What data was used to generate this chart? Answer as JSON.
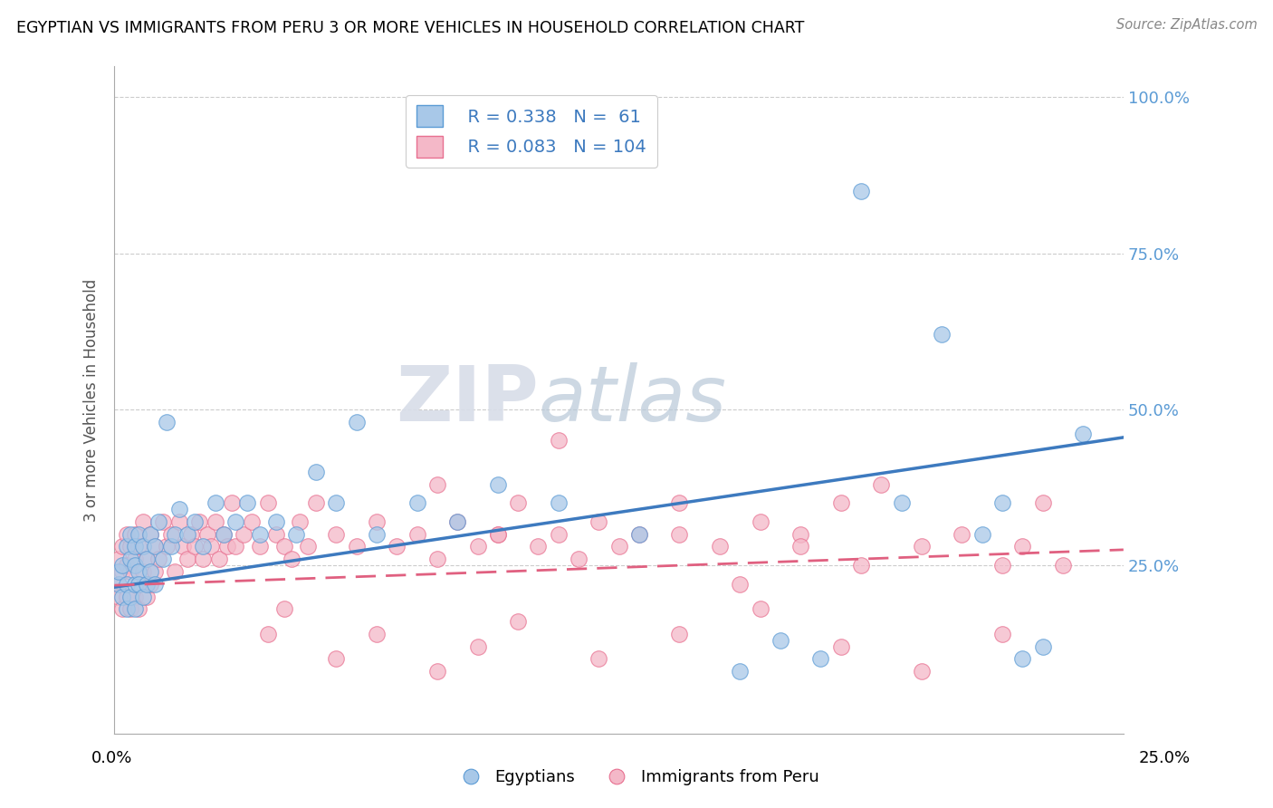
{
  "title": "EGYPTIAN VS IMMIGRANTS FROM PERU 3 OR MORE VEHICLES IN HOUSEHOLD CORRELATION CHART",
  "source": "Source: ZipAtlas.com",
  "ylabel": "3 or more Vehicles in Household",
  "xlim": [
    0.0,
    0.25
  ],
  "ylim": [
    -0.02,
    1.05
  ],
  "legend_r1": "R = 0.338",
  "legend_n1": "N =  61",
  "legend_r2": "R = 0.083",
  "legend_n2": "N = 104",
  "color_blue_fill": "#a8c8e8",
  "color_blue_edge": "#5b9bd5",
  "color_blue_line": "#3d7abf",
  "color_pink_fill": "#f4b8c8",
  "color_pink_edge": "#e87090",
  "color_pink_line": "#e06080",
  "ytick_vals": [
    0.0,
    0.25,
    0.5,
    0.75,
    1.0
  ],
  "ytick_labels_right": [
    "",
    "25.0%",
    "50.0%",
    "75.0%",
    "100.0%"
  ],
  "egyptians_x": [
    0.001,
    0.001,
    0.002,
    0.002,
    0.003,
    0.003,
    0.003,
    0.004,
    0.004,
    0.004,
    0.005,
    0.005,
    0.005,
    0.005,
    0.006,
    0.006,
    0.006,
    0.007,
    0.007,
    0.008,
    0.008,
    0.009,
    0.009,
    0.01,
    0.01,
    0.011,
    0.012,
    0.013,
    0.014,
    0.015,
    0.016,
    0.018,
    0.02,
    0.022,
    0.025,
    0.027,
    0.03,
    0.033,
    0.036,
    0.04,
    0.045,
    0.05,
    0.055,
    0.06,
    0.065,
    0.075,
    0.085,
    0.095,
    0.11,
    0.13,
    0.155,
    0.165,
    0.175,
    0.185,
    0.195,
    0.205,
    0.215,
    0.22,
    0.225,
    0.23,
    0.24
  ],
  "egyptians_y": [
    0.22,
    0.24,
    0.2,
    0.25,
    0.18,
    0.22,
    0.28,
    0.2,
    0.26,
    0.3,
    0.22,
    0.25,
    0.28,
    0.18,
    0.24,
    0.22,
    0.3,
    0.2,
    0.28,
    0.22,
    0.26,
    0.24,
    0.3,
    0.22,
    0.28,
    0.32,
    0.26,
    0.48,
    0.28,
    0.3,
    0.34,
    0.3,
    0.32,
    0.28,
    0.35,
    0.3,
    0.32,
    0.35,
    0.3,
    0.32,
    0.3,
    0.4,
    0.35,
    0.48,
    0.3,
    0.35,
    0.32,
    0.38,
    0.35,
    0.3,
    0.08,
    0.13,
    0.1,
    0.85,
    0.35,
    0.62,
    0.3,
    0.35,
    0.1,
    0.12,
    0.46
  ],
  "peru_x": [
    0.001,
    0.001,
    0.001,
    0.002,
    0.002,
    0.002,
    0.003,
    0.003,
    0.003,
    0.004,
    0.004,
    0.004,
    0.005,
    0.005,
    0.005,
    0.006,
    0.006,
    0.006,
    0.007,
    0.007,
    0.008,
    0.008,
    0.009,
    0.009,
    0.01,
    0.01,
    0.011,
    0.012,
    0.013,
    0.014,
    0.015,
    0.016,
    0.017,
    0.018,
    0.019,
    0.02,
    0.021,
    0.022,
    0.023,
    0.024,
    0.025,
    0.026,
    0.027,
    0.028,
    0.029,
    0.03,
    0.032,
    0.034,
    0.036,
    0.038,
    0.04,
    0.042,
    0.044,
    0.046,
    0.048,
    0.05,
    0.055,
    0.06,
    0.065,
    0.07,
    0.075,
    0.08,
    0.085,
    0.09,
    0.095,
    0.1,
    0.105,
    0.11,
    0.115,
    0.12,
    0.13,
    0.14,
    0.15,
    0.16,
    0.17,
    0.18,
    0.19,
    0.2,
    0.21,
    0.22,
    0.225,
    0.23,
    0.235,
    0.038,
    0.042,
    0.055,
    0.065,
    0.08,
    0.09,
    0.1,
    0.12,
    0.14,
    0.16,
    0.18,
    0.2,
    0.22,
    0.08,
    0.095,
    0.11,
    0.125,
    0.14,
    0.155,
    0.17,
    0.185
  ],
  "peru_y": [
    0.22,
    0.26,
    0.2,
    0.24,
    0.18,
    0.28,
    0.2,
    0.25,
    0.3,
    0.18,
    0.24,
    0.28,
    0.2,
    0.26,
    0.3,
    0.22,
    0.28,
    0.18,
    0.24,
    0.32,
    0.2,
    0.26,
    0.22,
    0.3,
    0.24,
    0.28,
    0.26,
    0.32,
    0.28,
    0.3,
    0.24,
    0.32,
    0.28,
    0.26,
    0.3,
    0.28,
    0.32,
    0.26,
    0.3,
    0.28,
    0.32,
    0.26,
    0.3,
    0.28,
    0.35,
    0.28,
    0.3,
    0.32,
    0.28,
    0.35,
    0.3,
    0.28,
    0.26,
    0.32,
    0.28,
    0.35,
    0.3,
    0.28,
    0.32,
    0.28,
    0.3,
    0.26,
    0.32,
    0.28,
    0.3,
    0.35,
    0.28,
    0.3,
    0.26,
    0.32,
    0.3,
    0.35,
    0.28,
    0.32,
    0.3,
    0.35,
    0.38,
    0.28,
    0.3,
    0.25,
    0.28,
    0.35,
    0.25,
    0.14,
    0.18,
    0.1,
    0.14,
    0.08,
    0.12,
    0.16,
    0.1,
    0.14,
    0.18,
    0.12,
    0.08,
    0.14,
    0.38,
    0.3,
    0.45,
    0.28,
    0.3,
    0.22,
    0.28,
    0.25
  ]
}
